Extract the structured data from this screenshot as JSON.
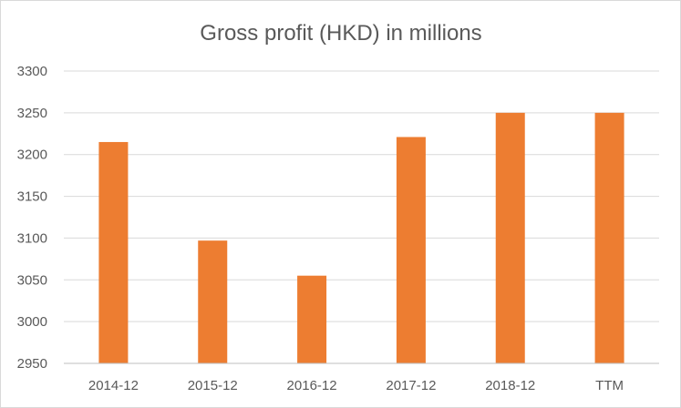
{
  "chart_data": {
    "type": "bar",
    "title": "Gross profit (HKD) in millions",
    "categories": [
      "2014-12",
      "2015-12",
      "2016-12",
      "2017-12",
      "2018-12",
      "TTM"
    ],
    "values": [
      3215,
      3097,
      3055,
      3221,
      3250,
      3250
    ],
    "ylim": [
      2950,
      3300
    ],
    "ytick_step": 50,
    "xlabel": "",
    "ylabel": "",
    "grid": true,
    "legend": "none",
    "bar_color": "#ed7d31"
  }
}
